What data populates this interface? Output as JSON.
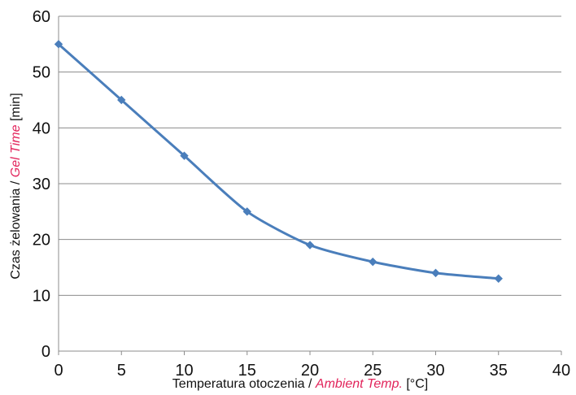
{
  "chart_data": {
    "type": "line",
    "title": "",
    "x": [
      0,
      5,
      10,
      15,
      20,
      25,
      30,
      35
    ],
    "series": [
      {
        "values": [
          55,
          45,
          35,
          25,
          19,
          16,
          14,
          13
        ]
      }
    ],
    "xlim": [
      0,
      40
    ],
    "ylim": [
      0,
      60
    ],
    "x_ticks": [
      "0",
      "5",
      "10",
      "15",
      "20",
      "25",
      "30",
      "35",
      "40"
    ],
    "y_ticks": [
      "0",
      "10",
      "20",
      "30",
      "40",
      "50",
      "60"
    ],
    "xlabel": {
      "prefix": "Temperatura otoczenia / ",
      "highlight": "Ambient Temp.",
      "suffix": " [°C]"
    },
    "ylabel": {
      "prefix": "Czas żelowania / ",
      "highlight": "Gel Time",
      "suffix": " [min]"
    },
    "grid": "horizontal",
    "legend": "none",
    "colors": {
      "line": "#4a7ebb",
      "marker": "#4a7ebb",
      "grid": "#8c8c8c",
      "axis": "#8c8c8c",
      "highlight": "#e2245b"
    }
  }
}
